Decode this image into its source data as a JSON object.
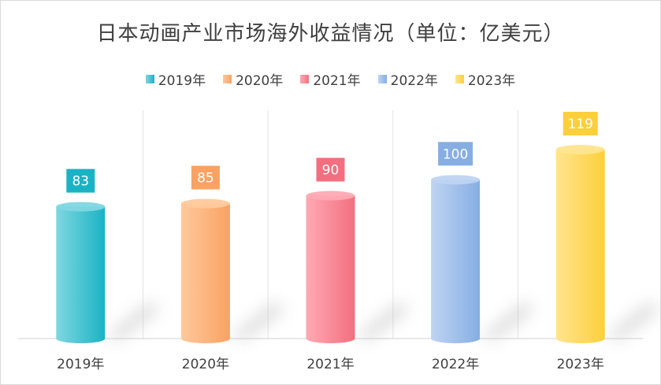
{
  "chart_data": {
    "type": "bar",
    "title": "日本动画产业市场海外收益情况（单位：亿美元）",
    "categories": [
      "2019年",
      "2020年",
      "2021年",
      "2022年",
      "2023年"
    ],
    "values": [
      83,
      85,
      90,
      100,
      119
    ],
    "series": [
      {
        "name": "2019年",
        "value": 83,
        "color": "#1ab3c4",
        "light": "#7fd7e1"
      },
      {
        "name": "2020年",
        "value": 85,
        "color": "#f9a263",
        "light": "#ffc99c"
      },
      {
        "name": "2021年",
        "value": 90,
        "color": "#f36f7f",
        "light": "#ffaab4"
      },
      {
        "name": "2022年",
        "value": 100,
        "color": "#86aee3",
        "light": "#bfd4f2"
      },
      {
        "name": "2023年",
        "value": 119,
        "color": "#fccf3b",
        "light": "#ffe58e"
      }
    ],
    "ylim": [
      0,
      119
    ],
    "grid": true,
    "legend": "top",
    "xlabel": "",
    "ylabel": ""
  }
}
